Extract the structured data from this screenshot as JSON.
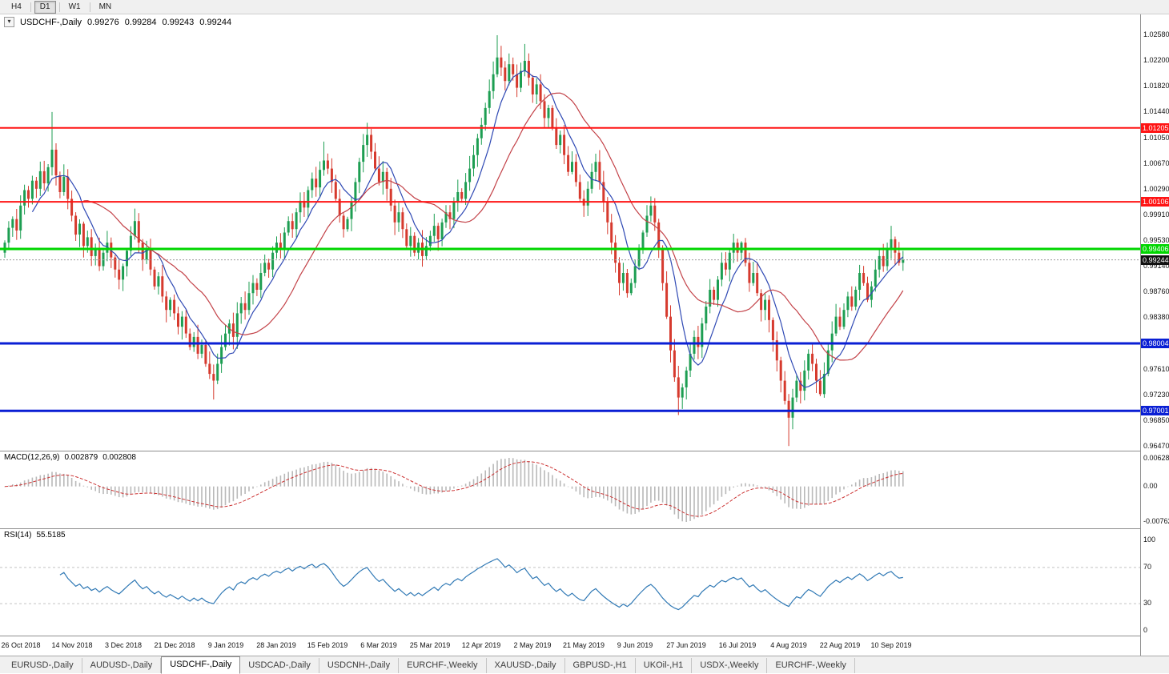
{
  "toolbar": {
    "timeframes": [
      {
        "label": "H4",
        "active": false
      },
      {
        "label": "D1",
        "active": true
      },
      {
        "label": "W1",
        "active": false
      },
      {
        "label": "MN",
        "active": false
      }
    ]
  },
  "chart": {
    "symbol_label": "USDCHF-,Daily",
    "open": "0.99276",
    "high": "0.99284",
    "low": "0.99243",
    "close": "0.99244"
  },
  "macd": {
    "label": "MACD(12,26,9)",
    "value_main": "0.002879",
    "value_signal": "0.002808",
    "axis_top": "0.006286",
    "axis_zero": "0.00",
    "axis_bottom": "-0.00762"
  },
  "rsi": {
    "label": "RSI(14)",
    "value": "55.5185",
    "axis": [
      "100",
      "70",
      "30",
      "0"
    ],
    "levels": [
      70,
      30
    ]
  },
  "tabs": {
    "active_index": 2,
    "items": [
      "EURUSD-,Daily",
      "AUDUSD-,Daily",
      "USDCHF-,Daily",
      "USDCAD-,Daily",
      "USDCNH-,Daily",
      "EURCHF-,Weekly",
      "XAUUSD-,Daily",
      "GBPUSD-,H1",
      "UKOil-,H1",
      "USDX-,Weekly",
      "EURCHF-,Weekly"
    ]
  },
  "colors": {
    "up": "#1d9e52",
    "down": "#d63a2e",
    "ma_fast": "#2f49b4",
    "ma_slow": "#c34248",
    "macd_hist": "#b9b9b9",
    "macd_signal": "#cc3333",
    "rsi": "#3079b5",
    "line_red": "#ff1414",
    "line_green": "#00d600",
    "line_blue": "#0a1fd4",
    "current": "#111111"
  },
  "chart_data": {
    "type": "candlestick",
    "symbol": "USDCHF-",
    "timeframe": "Daily",
    "price_max": 1.0258,
    "price_min": 0.9647,
    "price_ticks": [
      "1.02580",
      "1.02200",
      "1.01820",
      "1.01440",
      "1.01050",
      "1.00670",
      "1.00290",
      "0.99910",
      "0.99530",
      "0.99140",
      "0.98760",
      "0.98380",
      "0.97610",
      "0.97230",
      "0.96850",
      "0.96470"
    ],
    "hlines": [
      {
        "value": 1.01205,
        "label": "1.01205",
        "color": "line_red",
        "width": 2
      },
      {
        "value": 1.00106,
        "label": "1.00106",
        "color": "line_red",
        "width": 2
      },
      {
        "value": 0.99406,
        "label": "0.99406",
        "color": "line_green",
        "width": 3
      },
      {
        "value": 0.98004,
        "label": "0.98004",
        "color": "line_blue",
        "width": 3
      },
      {
        "value": 0.97001,
        "label": "0.97001",
        "color": "line_blue",
        "width": 3
      }
    ],
    "current_price": 0.99244,
    "current_price_label": "0.99244",
    "moving_averages": [
      {
        "name": "fast",
        "period": 8,
        "color_key": "ma_fast"
      },
      {
        "name": "slow",
        "period": 21,
        "color_key": "ma_slow"
      }
    ],
    "closes": [
      0.995,
      0.9972,
      0.9985,
      0.9968,
      1.0005,
      1.0028,
      1.0015,
      1.0042,
      1.003,
      1.0056,
      1.0038,
      1.0062,
      1.0088,
      1.005,
      1.0025,
      1.0048,
      1.0015,
      0.999,
      0.9962,
      0.9978,
      0.9945,
      0.9958,
      0.993,
      0.9942,
      0.9915,
      0.9935,
      0.995,
      0.9928,
      0.991,
      0.9895,
      0.9915,
      0.9938,
      0.996,
      0.9982,
      0.995,
      0.9925,
      0.994,
      0.991,
      0.9885,
      0.99,
      0.987,
      0.985,
      0.9865,
      0.9845,
      0.9825,
      0.984,
      0.9815,
      0.9795,
      0.981,
      0.9785,
      0.9798,
      0.977,
      0.9755,
      0.9745,
      0.977,
      0.9795,
      0.9815,
      0.983,
      0.981,
      0.9845,
      0.986,
      0.985,
      0.9875,
      0.989,
      0.988,
      0.9905,
      0.992,
      0.991,
      0.9935,
      0.995,
      0.9942,
      0.9965,
      0.9982,
      0.997,
      0.9995,
      1.0012,
      1.0002,
      1.0028,
      1.0045,
      1.0032,
      1.0058,
      1.0072,
      1.006,
      1.004,
      1.0015,
      0.999,
      0.997,
      0.9985,
      1.001,
      1.004,
      1.007,
      1.0095,
      1.011,
      1.0085,
      1.006,
      1.004,
      1.0055,
      1.003,
      1.0005,
      0.998,
      0.9995,
      0.997,
      0.9945,
      0.996,
      0.9935,
      0.995,
      0.993,
      0.9945,
      0.996,
      0.9975,
      0.9955,
      0.998,
      0.9995,
      0.9985,
      1.001,
      1.0025,
      1.0015,
      1.004,
      1.006,
      1.008,
      1.0105,
      1.0125,
      1.015,
      1.0175,
      1.02,
      1.0225,
      1.021,
      1.019,
      1.0215,
      1.02,
      1.018,
      1.0205,
      1.022,
      1.0195,
      1.017,
      1.0185,
      1.016,
      1.0135,
      1.015,
      1.012,
      1.0095,
      1.011,
      1.008,
      1.0055,
      1.007,
      1.004,
      1.0015,
      1.0005,
      1.003,
      1.0055,
      1.007,
      1.004,
      1.001,
      0.998,
      0.995,
      0.992,
      0.989,
      0.9905,
      0.9875,
      0.989,
      0.9915,
      0.994,
      0.9965,
      0.999,
      1.0005,
      0.998,
      0.994,
      0.989,
      0.984,
      0.979,
      0.975,
      0.972,
      0.9735,
      0.976,
      0.9785,
      0.981,
      0.9795,
      0.983,
      0.9855,
      0.988,
      0.9865,
      0.9895,
      0.992,
      0.991,
      0.9935,
      0.995,
      0.9935,
      0.995,
      0.992,
      0.989,
      0.9905,
      0.9875,
      0.985,
      0.9865,
      0.9835,
      0.9805,
      0.9775,
      0.9745,
      0.9715,
      0.969,
      0.972,
      0.9745,
      0.973,
      0.976,
      0.9785,
      0.977,
      0.9745,
      0.9725,
      0.9755,
      0.979,
      0.9815,
      0.984,
      0.9825,
      0.985,
      0.987,
      0.9855,
      0.988,
      0.9905,
      0.989,
      0.9865,
      0.9885,
      0.991,
      0.993,
      0.9915,
      0.994,
      0.9955,
      0.9935,
      0.992,
      0.99244
    ],
    "extremes": [
      {
        "i": 12,
        "high": 1.0144
      },
      {
        "i": 53,
        "low": 0.9717
      },
      {
        "i": 81,
        "high": 1.01
      },
      {
        "i": 92,
        "high": 1.0128
      },
      {
        "i": 125,
        "high": 1.0258
      },
      {
        "i": 132,
        "high": 1.0245
      },
      {
        "i": 171,
        "low": 0.9694
      },
      {
        "i": 187,
        "high": 0.9952
      },
      {
        "i": 199,
        "low": 0.9648
      },
      {
        "i": 225,
        "high": 0.9975
      }
    ],
    "date_labels": [
      {
        "i": 4,
        "label": "26 Oct 2018"
      },
      {
        "i": 17,
        "label": "14 Nov 2018"
      },
      {
        "i": 30,
        "label": "3 Dec 2018"
      },
      {
        "i": 43,
        "label": "21 Dec 2018"
      },
      {
        "i": 56,
        "label": "9 Jan 2019"
      },
      {
        "i": 69,
        "label": "28 Jan 2019"
      },
      {
        "i": 82,
        "label": "15 Feb 2019"
      },
      {
        "i": 95,
        "label": "6 Mar 2019"
      },
      {
        "i": 108,
        "label": "25 Mar 2019"
      },
      {
        "i": 121,
        "label": "12 Apr 2019"
      },
      {
        "i": 134,
        "label": "2 May 2019"
      },
      {
        "i": 147,
        "label": "21 May 2019"
      },
      {
        "i": 160,
        "label": "9 Jun 2019"
      },
      {
        "i": 173,
        "label": "27 Jun 2019"
      },
      {
        "i": 186,
        "label": "16 Jul 2019"
      },
      {
        "i": 199,
        "label": "4 Aug 2019"
      },
      {
        "i": 212,
        "label": "22 Aug 2019"
      },
      {
        "i": 225,
        "label": "10 Sep 2019"
      }
    ]
  }
}
